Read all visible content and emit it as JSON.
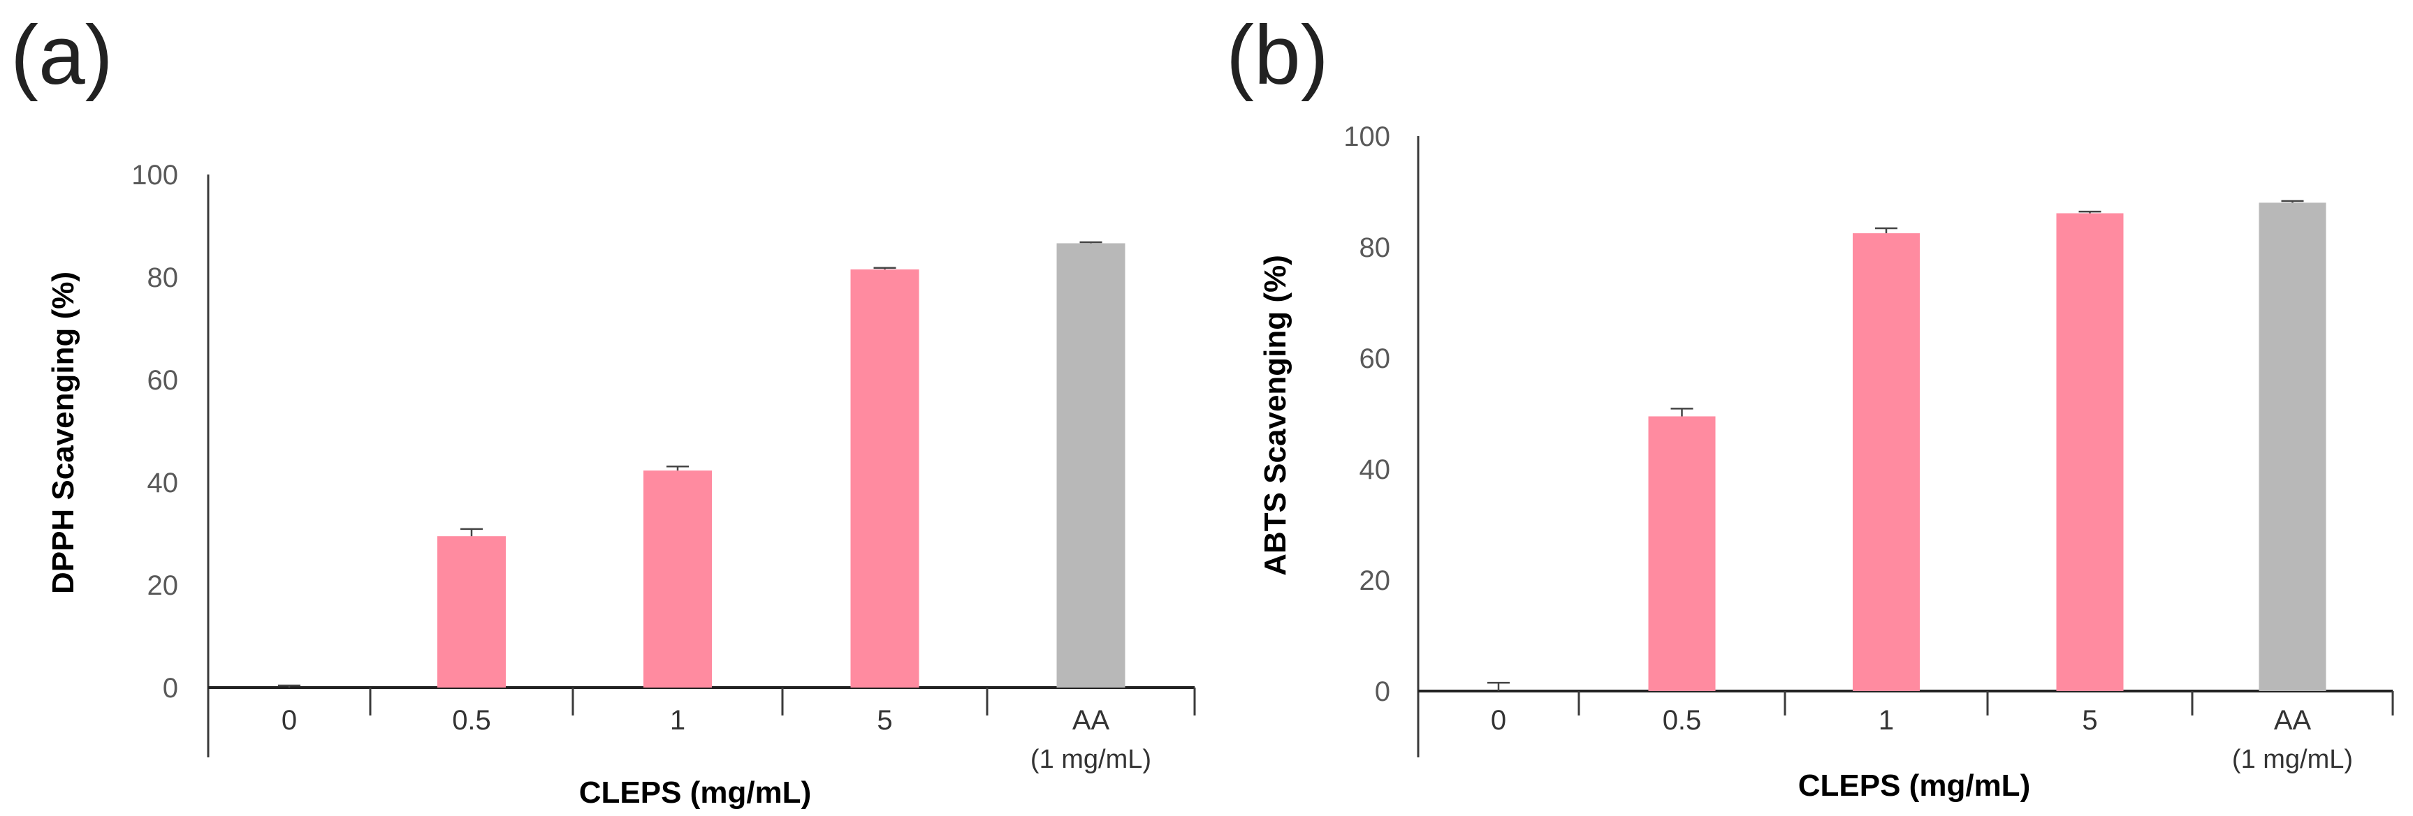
{
  "chart_data": [
    {
      "panel_label": "(a)",
      "type": "bar",
      "categories": [
        "0",
        "0.5",
        "1",
        "5",
        "AA"
      ],
      "category_sublabels": [
        "",
        "",
        "",
        "",
        "(1 mg/mL)"
      ],
      "values": [
        0,
        29.5,
        42.3,
        81.5,
        86.6
      ],
      "errors": [
        0.4,
        1.4,
        0.8,
        0.3,
        0.2
      ],
      "bar_colors": [
        "#FF8BA0",
        "#FF8BA0",
        "#FF8BA0",
        "#FF8BA0",
        "#B8B8B8"
      ],
      "xlabel": "CLEPS (mg/mL)",
      "ylabel": "DPPH Scavenging (%)",
      "ylim": [
        0,
        100
      ],
      "yticks": [
        "0",
        "20",
        "40",
        "60",
        "80",
        "100"
      ],
      "grid": false
    },
    {
      "panel_label": "(b)",
      "type": "bar",
      "categories": [
        "0",
        "0.5",
        "1",
        "5",
        "AA"
      ],
      "category_sublabels": [
        "",
        "",
        "",
        "",
        "(1 mg/mL)"
      ],
      "values": [
        0,
        49.5,
        82.5,
        86.1,
        88.0
      ],
      "errors": [
        1.5,
        1.4,
        0.9,
        0.3,
        0.3
      ],
      "bar_colors": [
        "#FF8BA0",
        "#FF8BA0",
        "#FF8BA0",
        "#FF8BA0",
        "#B8B8B8"
      ],
      "xlabel": "CLEPS (mg/mL)",
      "ylabel": "ABTS Scavenging (%)",
      "ylim": [
        0,
        100
      ],
      "yticks": [
        "0",
        "20",
        "40",
        "60",
        "80",
        "100"
      ],
      "grid": false
    }
  ]
}
